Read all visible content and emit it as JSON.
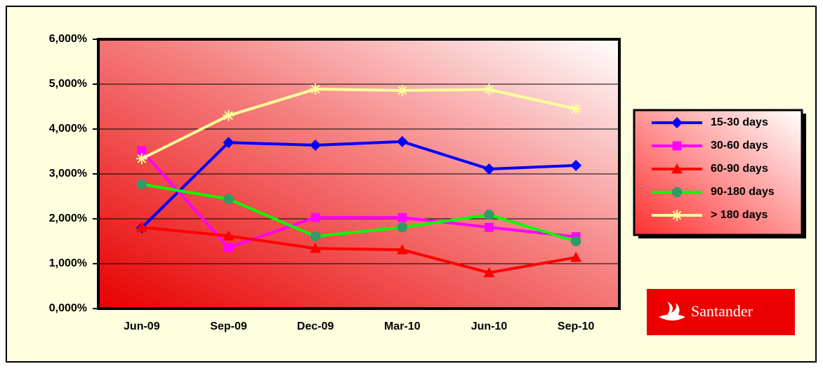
{
  "chart_data": {
    "type": "line",
    "categories": [
      "Jun-09",
      "Sep-09",
      "Dec-09",
      "Mar-10",
      "Jun-10",
      "Sep-10"
    ],
    "series": [
      {
        "name": "15-30 days",
        "color": "#0000ff",
        "marker": "diamond",
        "values": [
          1.8,
          3.7,
          3.64,
          3.72,
          3.11,
          3.19
        ]
      },
      {
        "name": "30-60 days",
        "color": "#ff00ff",
        "marker": "square",
        "values": [
          3.52,
          1.36,
          2.03,
          2.03,
          1.81,
          1.6
        ]
      },
      {
        "name": "60-90 days",
        "color": "#ff0000",
        "marker": "triangle",
        "values": [
          1.81,
          1.62,
          1.34,
          1.31,
          0.8,
          1.14
        ]
      },
      {
        "name": "90-180 days",
        "color": "#00ff00",
        "marker": "circle",
        "marker_color": "#339966",
        "values": [
          2.77,
          2.44,
          1.61,
          1.81,
          2.09,
          1.5
        ]
      },
      {
        "name": "> 180 days",
        "color": "#ffff99",
        "marker": "star",
        "values": [
          3.34,
          4.3,
          4.89,
          4.86,
          4.88,
          4.45
        ]
      }
    ],
    "ylim": [
      0,
      6
    ],
    "yticks": [
      {
        "value": 0,
        "label": "0,000%"
      },
      {
        "value": 1,
        "label": "1,000%"
      },
      {
        "value": 2,
        "label": "2,000%"
      },
      {
        "value": 3,
        "label": "3,000%"
      },
      {
        "value": 4,
        "label": "4,000%"
      },
      {
        "value": 5,
        "label": "5,000%"
      },
      {
        "value": 6,
        "label": "6,000%"
      }
    ],
    "grid": true,
    "legend": "right",
    "logo_text": "Santander"
  }
}
